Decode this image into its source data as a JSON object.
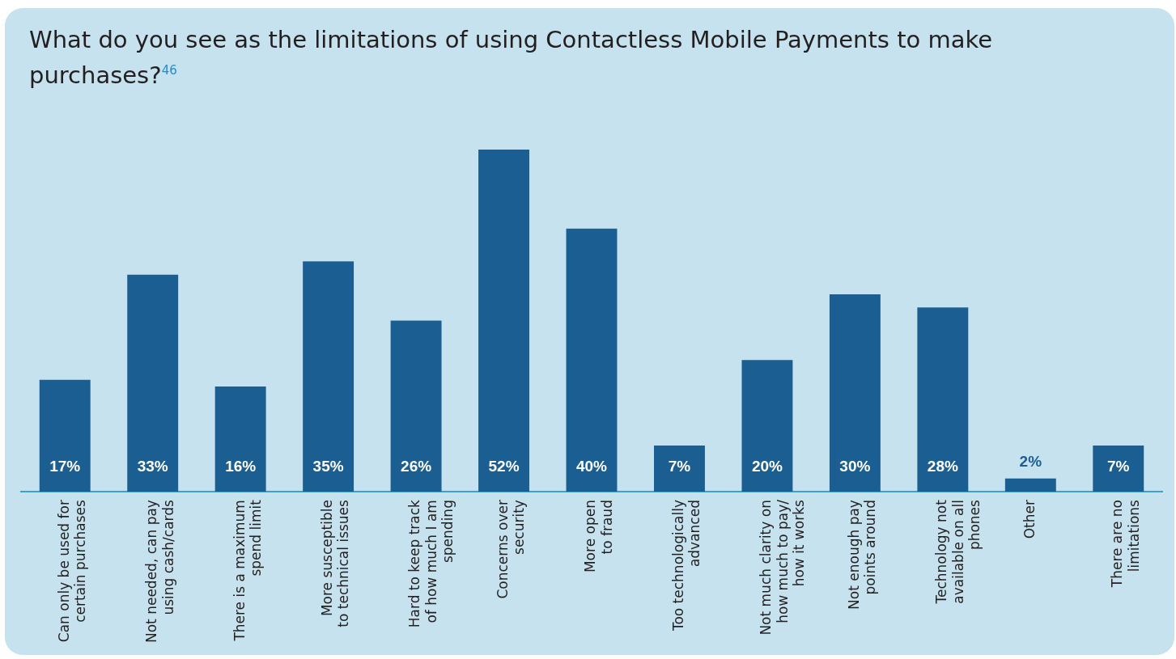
{
  "chart_data": {
    "type": "bar",
    "title": "What do you see as the limitations of using Contactless Mobile Payments to make purchases?$^{46}$",
    "categories": [
      "Can only be used for\ncertain purchases",
      "Not needed, can pay\nusing cash/cards",
      "There is a maximum\nspend limit",
      "More susceptible\nto technical issues",
      "Hard to keep track\nof how much I am\nspending",
      "Concerns over\nsecurity",
      "More open\nto fraud",
      "Too technologically\nadvanced",
      "Not much clarity on\nhow much to pay/\nhow it works",
      "Not enough pay\npoints around",
      "Technology not\navailable on all\nphones",
      "Other",
      "There are no\nlimitations"
    ],
    "values": [
      17,
      33,
      16,
      35,
      26,
      52,
      40,
      7,
      20,
      30,
      28,
      2,
      7
    ],
    "value_labels": [
      "17%",
      "33%",
      "16%",
      "35%",
      "26%",
      "52%",
      "40%",
      "7%",
      "20%",
      "30%",
      "28%",
      "2%",
      "7%"
    ],
    "color": "#1b5e92",
    "grid": false,
    "legend": false
  }
}
